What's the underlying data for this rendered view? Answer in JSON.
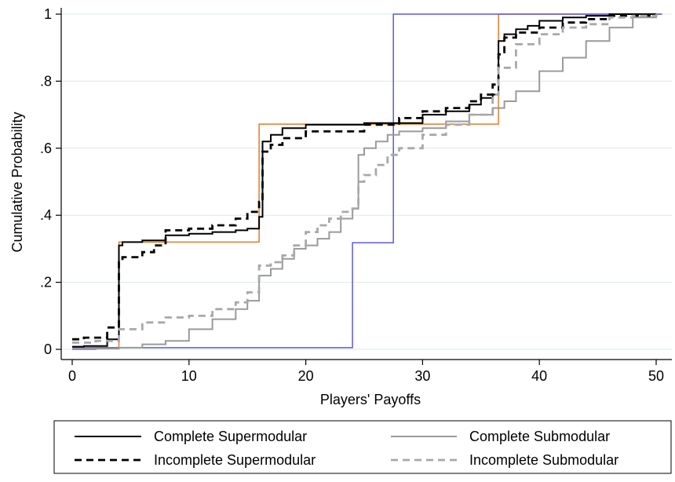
{
  "chart_data": {
    "type": "line",
    "step": true,
    "xlabel": "Players' Payoffs",
    "ylabel": "Cumulative Probability",
    "xlim": [
      0,
      51
    ],
    "ylim": [
      -0.01,
      1.02
    ],
    "x_ticks": [
      0,
      10,
      20,
      30,
      40,
      50
    ],
    "y_ticks": [
      0,
      0.2,
      0.4,
      0.6,
      0.8,
      1
    ],
    "x_tick_labels": [
      "0",
      "10",
      "20",
      "30",
      "40",
      "50"
    ],
    "y_tick_labels": [
      "0",
      ".2",
      ".4",
      ".6",
      ".8",
      "1"
    ],
    "grid": "horizontal",
    "legend_position": "bottom",
    "series": [
      {
        "name": "Complete Supermodular",
        "color": "#000000",
        "style": "solid",
        "width": 2,
        "x": [
          0,
          1,
          3,
          4,
          4.3,
          6,
          8,
          10,
          12,
          14,
          15,
          16,
          16.3,
          17,
          18,
          20,
          25,
          30,
          32,
          34,
          35,
          36,
          36.5,
          37,
          38,
          39,
          40,
          42,
          44,
          46,
          50
        ],
        "y": [
          0.008,
          0.01,
          0.03,
          0.31,
          0.32,
          0.325,
          0.34,
          0.345,
          0.35,
          0.355,
          0.36,
          0.395,
          0.62,
          0.64,
          0.66,
          0.67,
          0.675,
          0.7,
          0.71,
          0.73,
          0.75,
          0.76,
          0.92,
          0.94,
          0.955,
          0.965,
          0.98,
          0.99,
          0.995,
          1.0,
          1.0
        ]
      },
      {
        "name": "Incomplete Supermodular",
        "color": "#000000",
        "style": "dashed",
        "width": 2.8,
        "x": [
          0,
          1,
          3,
          4,
          4.3,
          6,
          7,
          8,
          10,
          12,
          14,
          15,
          16,
          16.3,
          17,
          18,
          20,
          25,
          28,
          30,
          32,
          34,
          35,
          36,
          36.5,
          37,
          38,
          40,
          42,
          44,
          46,
          50
        ],
        "y": [
          0.03,
          0.035,
          0.065,
          0.26,
          0.275,
          0.29,
          0.31,
          0.355,
          0.36,
          0.37,
          0.39,
          0.41,
          0.44,
          0.59,
          0.61,
          0.63,
          0.65,
          0.67,
          0.69,
          0.71,
          0.72,
          0.74,
          0.76,
          0.79,
          0.88,
          0.93,
          0.945,
          0.96,
          0.975,
          0.985,
          0.995,
          1.0
        ]
      },
      {
        "name": "Complete Submodular",
        "color": "#9a9a9a",
        "style": "solid",
        "width": 2,
        "x": [
          0,
          2,
          4,
          6,
          8,
          10,
          12,
          14,
          15,
          16,
          17,
          18,
          19,
          20,
          21,
          22,
          23,
          24,
          24.5,
          25,
          26,
          27,
          28,
          30,
          32,
          34,
          36,
          37,
          38,
          40,
          42,
          44,
          46,
          48,
          50
        ],
        "y": [
          0.0,
          0.002,
          0.005,
          0.015,
          0.025,
          0.06,
          0.09,
          0.12,
          0.145,
          0.22,
          0.24,
          0.27,
          0.3,
          0.31,
          0.33,
          0.35,
          0.39,
          0.42,
          0.58,
          0.6,
          0.62,
          0.64,
          0.65,
          0.66,
          0.68,
          0.7,
          0.72,
          0.74,
          0.77,
          0.83,
          0.87,
          0.92,
          0.96,
          0.99,
          1.0
        ]
      },
      {
        "name": "Incomplete Submodular",
        "color": "#a8a8a8",
        "style": "dashed",
        "width": 2.8,
        "x": [
          0,
          2,
          4,
          6,
          8,
          10,
          12,
          14,
          15,
          16,
          17,
          18,
          19,
          20,
          21,
          22,
          23,
          24,
          24.5,
          25,
          26,
          27,
          28,
          30,
          32,
          34,
          36,
          36.5,
          38,
          40,
          42,
          44,
          46,
          48,
          50
        ],
        "y": [
          0.02,
          0.025,
          0.06,
          0.08,
          0.095,
          0.1,
          0.12,
          0.14,
          0.17,
          0.25,
          0.26,
          0.28,
          0.31,
          0.35,
          0.37,
          0.39,
          0.41,
          0.42,
          0.5,
          0.52,
          0.55,
          0.58,
          0.6,
          0.64,
          0.67,
          0.7,
          0.76,
          0.84,
          0.91,
          0.94,
          0.96,
          0.97,
          0.99,
          0.995,
          1.0
        ]
      },
      {
        "name": "",
        "color": "#e07d2a",
        "style": "solid",
        "width": 1.5,
        "x": [
          0,
          4,
          16,
          36.5,
          50.5
        ],
        "y": [
          0.005,
          0.32,
          0.672,
          1.0,
          1.0
        ]
      },
      {
        "name": "",
        "color": "#5b5bd6",
        "style": "solid",
        "width": 1.5,
        "x": [
          0,
          24,
          27.5,
          50.5
        ],
        "y": [
          0.005,
          0.318,
          1.0,
          1.0
        ]
      }
    ]
  }
}
